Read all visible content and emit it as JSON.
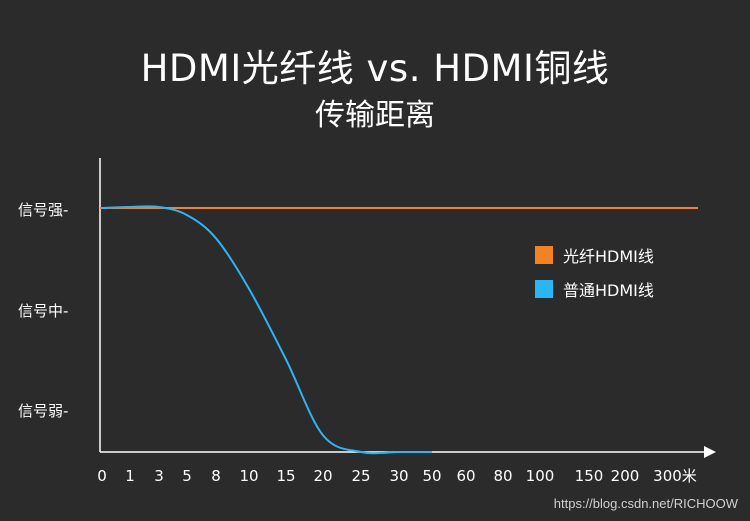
{
  "chart_data": {
    "type": "line",
    "title": "HDMI光纤线 vs. HDMI铜线",
    "subtitle": "传输距离",
    "xlabel": "",
    "ylabel": "",
    "x_ticks": [
      "0",
      "1",
      "3",
      "5",
      "8",
      "10",
      "15",
      "20",
      "25",
      "30",
      "50",
      "60",
      "80",
      "100",
      "150",
      "200",
      "300米"
    ],
    "y_ticks": [
      "信号强-",
      "信号中-",
      "信号弱-"
    ],
    "y_scale": {
      "strong": 3,
      "medium": 2,
      "weak": 1,
      "none": 0
    },
    "grid": false,
    "legend_position": "right",
    "series": [
      {
        "name": "光纤HDMI线",
        "color": "#f58220",
        "values": [
          3.0,
          3.0,
          3.0,
          3.0,
          3.0,
          3.0,
          3.0,
          3.0,
          3.0,
          3.0,
          3.0,
          3.0,
          3.0,
          3.0,
          3.0,
          3.0,
          3.0
        ]
      },
      {
        "name": "普通HDMI线",
        "color": "#29b6f6",
        "values": [
          3.0,
          3.01,
          3.01,
          2.93,
          2.7,
          2.2,
          1.5,
          0.75,
          0.2,
          0.05,
          0.0,
          0.0,
          0.0,
          0.0,
          0.0,
          0.0,
          0.0
        ]
      }
    ]
  },
  "watermark": "https://blog.csdn.net/RICHOOW"
}
